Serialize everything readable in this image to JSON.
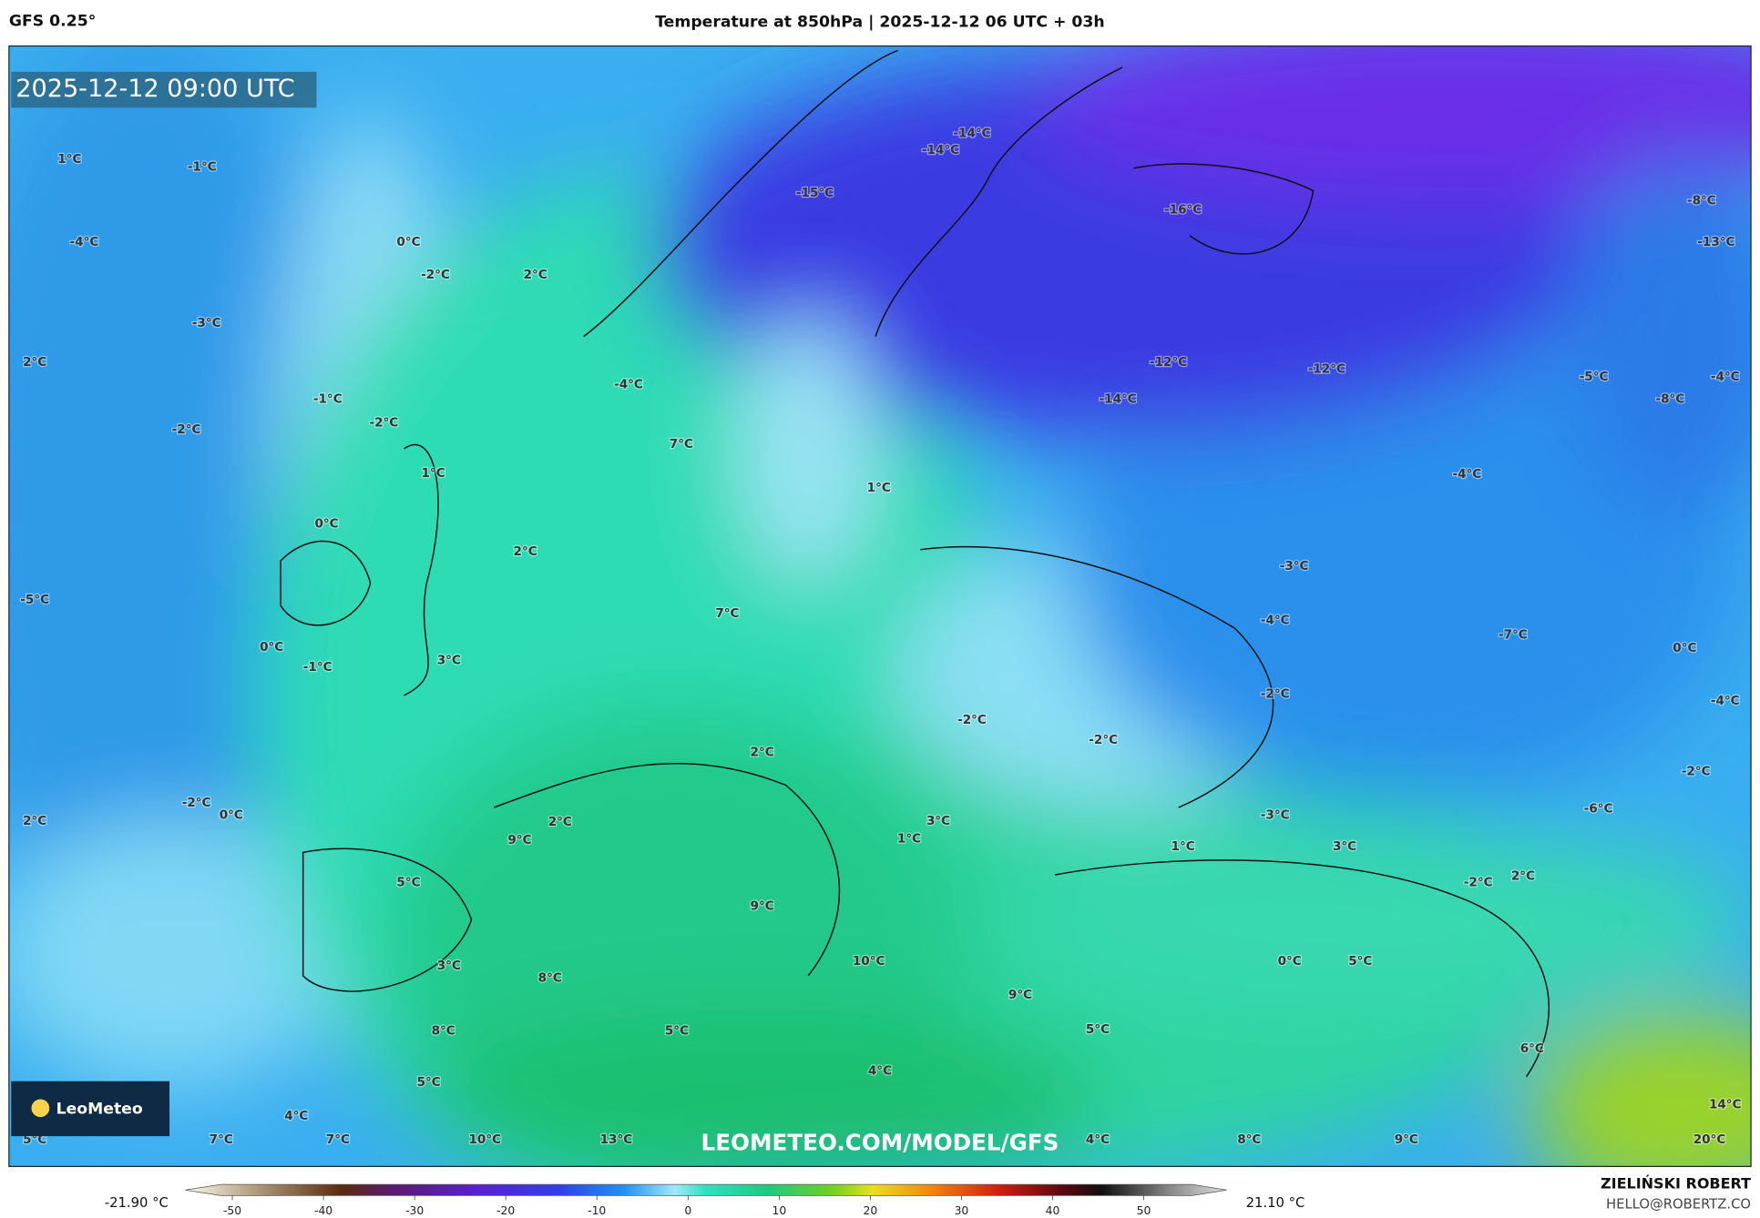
{
  "header": {
    "model": "GFS 0.25°",
    "title": "Temperature at 850hPa | 2025-12-12 06 UTC + 03h"
  },
  "map": {
    "valid_time": "2025-12-12 09:00 UTC",
    "watermark": "LEOMETEO.COM/MODEL/GFS",
    "logo": "LeoMeteo",
    "labels": [
      "1°C",
      "-1°C",
      "-4°C",
      "0°C",
      "-2°C",
      "2°C",
      "-3°C",
      "2°C",
      "-1°C",
      "-2°C",
      "-2°C",
      "-4°C",
      "7°C",
      "1°C",
      "0°C",
      "2°C",
      "-5°C",
      "7°C",
      "0°C",
      "-1°C",
      "3°C",
      "-2°C",
      "0°C",
      "2°C",
      "9°C",
      "2°C",
      "2°C",
      "5°C",
      "1°C",
      "3°C",
      "9°C",
      "3°C",
      "8°C",
      "10°C",
      "9°C",
      "8°C",
      "5°C",
      "5°C",
      "4°C",
      "4°C",
      "5°C",
      "7°C",
      "7°C",
      "10°C",
      "13°C",
      "4°C",
      "8°C",
      "9°C",
      "20°C",
      "14°C",
      "6°C",
      "5°C",
      "0°C",
      "5°C",
      "2°C",
      "-2°C",
      "3°C",
      "1°C",
      "-3°C",
      "-6°C",
      "-2°C",
      "-4°C",
      "0°C",
      "-7°C",
      "-2°C",
      "-2°C",
      "-2°C",
      "-4°C",
      "-3°C",
      "-4°C",
      "1°C",
      "-14°C",
      "-12°C",
      "-12°C",
      "-5°C",
      "-8°C",
      "-4°C",
      "-16°C",
      "-15°C",
      "-14°C",
      "-14°C",
      "-8°C",
      "-13°C"
    ]
  },
  "colorbar": {
    "min": "-21.90 °C",
    "max": "21.10 °C",
    "ticks": [
      -50,
      -40,
      -30,
      -20,
      -10,
      0,
      10,
      20,
      30,
      40,
      50
    ]
  },
  "credits": {
    "author": "ZIELIŃSKI ROBERT",
    "email": "HELLO@ROBERTZ.CO"
  }
}
